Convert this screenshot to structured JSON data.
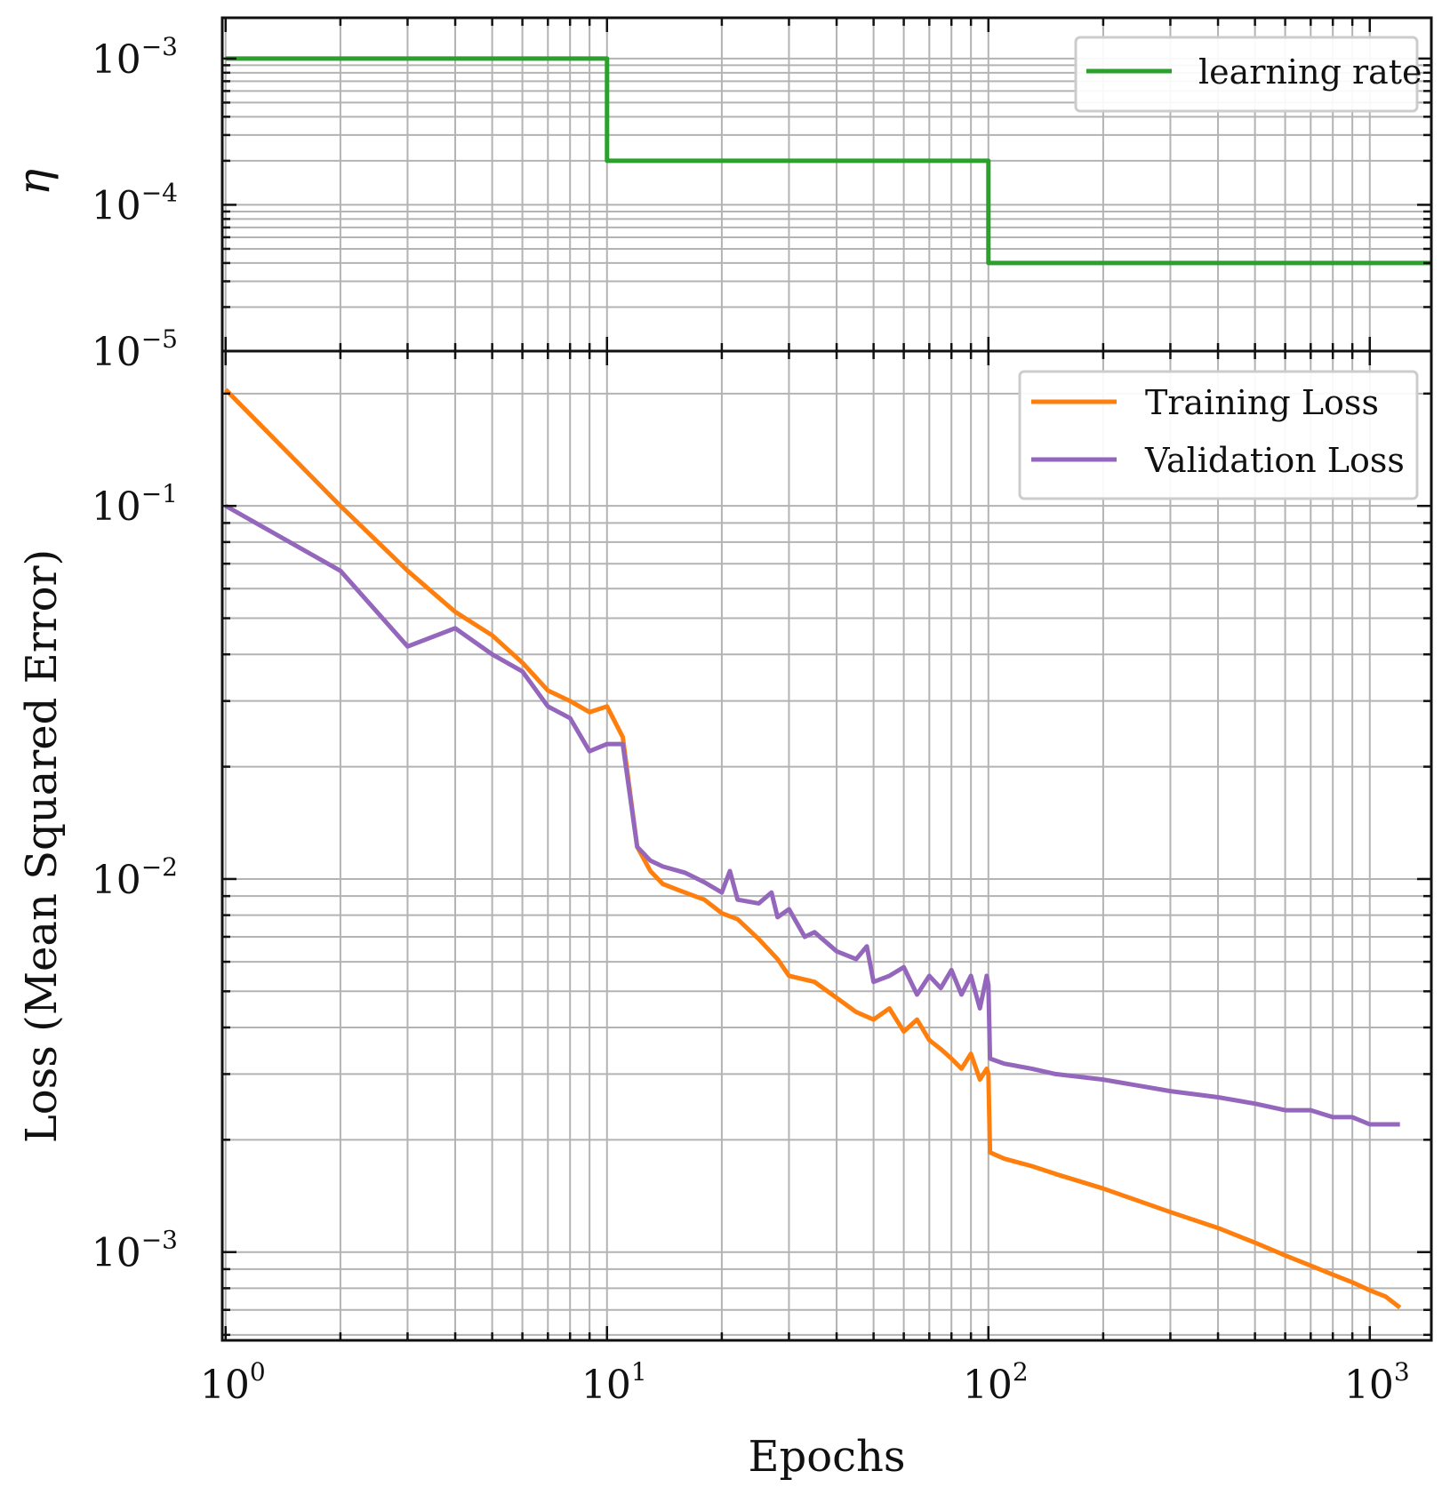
{
  "chart_data": [
    {
      "type": "line",
      "panel": "top",
      "ylabel": "η",
      "xscale": "log",
      "yscale": "log",
      "xlim": [
        0.98,
        1450
      ],
      "ylim": [
        1e-05,
        0.0019
      ],
      "yticks": [
        {
          "value": 0.001,
          "base": "10",
          "exp": "−3"
        },
        {
          "value": 0.0001,
          "base": "10",
          "exp": "−4"
        },
        {
          "value": 1e-05,
          "base": "10",
          "exp": "−5"
        }
      ],
      "grid": true,
      "legend_position": "top-right",
      "series": [
        {
          "name": "learning rate",
          "color": "#2ca02c",
          "x": [
            1,
            10,
            10,
            100,
            100,
            1450
          ],
          "y": [
            0.001,
            0.001,
            0.0002,
            0.0002,
            4e-05,
            4e-05
          ]
        }
      ]
    },
    {
      "type": "line",
      "panel": "bottom",
      "ylabel": "Loss (Mean Squared Error)",
      "xlabel": "Epochs",
      "xscale": "log",
      "yscale": "log",
      "xlim": [
        0.98,
        1450
      ],
      "ylim": [
        0.00058,
        0.26
      ],
      "xticks": [
        {
          "value": 1,
          "base": "10",
          "exp": "0"
        },
        {
          "value": 10,
          "base": "10",
          "exp": "1"
        },
        {
          "value": 100,
          "base": "10",
          "exp": "2"
        },
        {
          "value": 1000,
          "base": "10",
          "exp": "3"
        }
      ],
      "yticks": [
        {
          "value": 0.1,
          "base": "10",
          "exp": "−1"
        },
        {
          "value": 0.01,
          "base": "10",
          "exp": "−2"
        },
        {
          "value": 0.001,
          "base": "10",
          "exp": "−3"
        }
      ],
      "grid": true,
      "legend_position": "top-right",
      "series": [
        {
          "name": "Training Loss",
          "color": "#ff7f0e",
          "x": [
            1,
            2,
            3,
            4,
            5,
            6,
            7,
            8,
            9,
            10,
            11,
            12,
            13,
            14,
            16,
            18,
            20,
            22,
            25,
            28,
            30,
            35,
            40,
            45,
            50,
            55,
            60,
            65,
            70,
            75,
            80,
            85,
            90,
            95,
            99,
            100,
            101,
            110,
            130,
            150,
            200,
            300,
            400,
            500,
            600,
            700,
            800,
            900,
            1000,
            1100,
            1200
          ],
          "y": [
            0.205,
            0.1,
            0.067,
            0.052,
            0.045,
            0.038,
            0.032,
            0.03,
            0.028,
            0.029,
            0.024,
            0.0122,
            0.0105,
            0.0097,
            0.0092,
            0.0088,
            0.0081,
            0.0078,
            0.0069,
            0.0061,
            0.0055,
            0.0053,
            0.0048,
            0.0044,
            0.0042,
            0.0045,
            0.0039,
            0.0042,
            0.0037,
            0.0035,
            0.0033,
            0.0031,
            0.0034,
            0.0029,
            0.0031,
            0.003,
            0.00185,
            0.00178,
            0.0017,
            0.00162,
            0.00148,
            0.00128,
            0.00116,
            0.00106,
            0.00098,
            0.00092,
            0.00087,
            0.00083,
            0.00079,
            0.00076,
            0.00071
          ]
        },
        {
          "name": "Validation Loss",
          "color": "#9467bd",
          "x": [
            1,
            2,
            3,
            4,
            5,
            6,
            7,
            8,
            9,
            10,
            11,
            12,
            13,
            14,
            16,
            18,
            20,
            21,
            22,
            25,
            27,
            28,
            30,
            33,
            35,
            40,
            45,
            48,
            50,
            55,
            60,
            65,
            70,
            75,
            80,
            85,
            90,
            95,
            99,
            100,
            101,
            110,
            130,
            150,
            200,
            300,
            400,
            500,
            600,
            700,
            800,
            900,
            1000,
            1100,
            1200
          ],
          "y": [
            0.1,
            0.067,
            0.042,
            0.047,
            0.04,
            0.036,
            0.029,
            0.027,
            0.022,
            0.023,
            0.023,
            0.0122,
            0.0112,
            0.0108,
            0.0104,
            0.0098,
            0.0092,
            0.0105,
            0.0088,
            0.0086,
            0.0092,
            0.0079,
            0.0083,
            0.007,
            0.0072,
            0.0064,
            0.0061,
            0.0066,
            0.0053,
            0.0055,
            0.0058,
            0.0049,
            0.0055,
            0.0051,
            0.0057,
            0.0049,
            0.0055,
            0.0045,
            0.0055,
            0.0052,
            0.0033,
            0.0032,
            0.0031,
            0.003,
            0.0029,
            0.0027,
            0.0026,
            0.0025,
            0.0024,
            0.0024,
            0.0023,
            0.0023,
            0.0022,
            0.0022,
            0.0022
          ]
        }
      ]
    }
  ]
}
